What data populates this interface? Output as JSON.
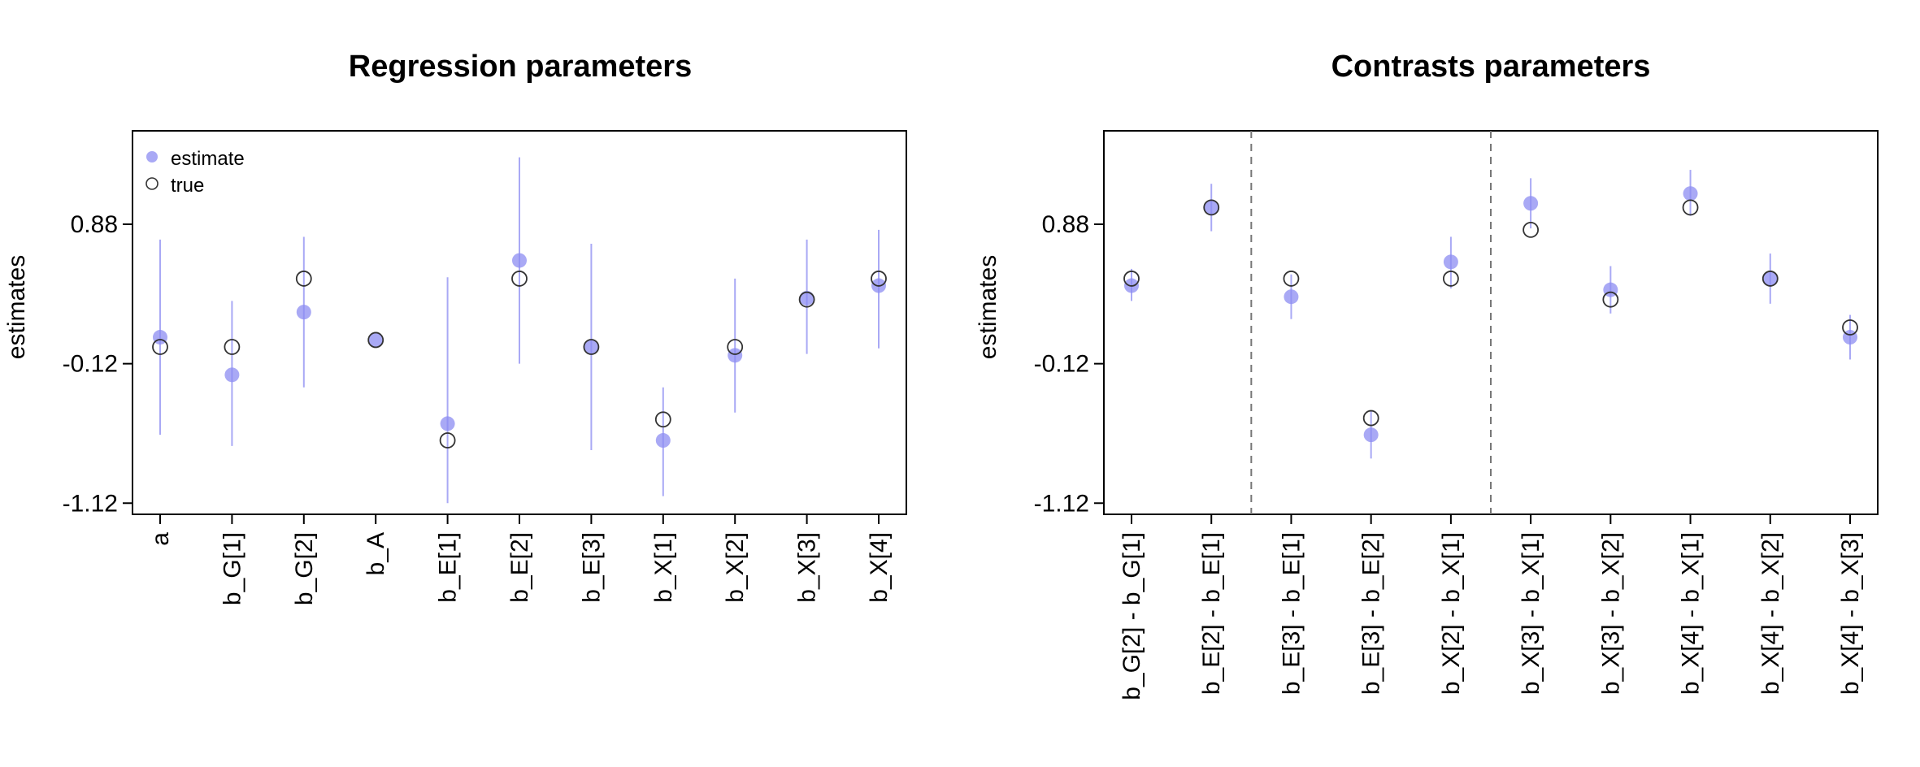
{
  "chart_data": [
    {
      "type": "scatter",
      "title": "Regression parameters",
      "xlabel": "",
      "ylabel": "estimates",
      "ylim": [
        -1.2,
        1.55
      ],
      "yticks": [
        0.88,
        -0.12,
        -1.12
      ],
      "ytick_labels": [
        "0.88",
        "-0.12",
        "-1.12"
      ],
      "categories": [
        "a",
        "b_G[1]",
        "b_G[2]",
        "b_A",
        "b_E[1]",
        "b_E[2]",
        "b_E[3]",
        "b_X[1]",
        "b_X[2]",
        "b_X[3]",
        "b_X[4]"
      ],
      "legend": {
        "placement": "top-left",
        "entries": [
          "estimate",
          "true"
        ]
      },
      "series": [
        {
          "name": "estimate",
          "values": [
            0.07,
            -0.2,
            0.25,
            0.05,
            -0.55,
            0.62,
            0.0,
            -0.67,
            -0.06,
            0.35,
            0.44
          ],
          "color": "#8c8cf2",
          "lower": [
            -0.63,
            -0.71,
            -0.29,
            0.05,
            -1.12,
            -0.12,
            -0.74,
            -1.07,
            -0.47,
            -0.05,
            -0.01
          ],
          "upper": [
            0.77,
            0.33,
            0.79,
            0.05,
            0.5,
            1.36,
            0.74,
            -0.29,
            0.49,
            0.77,
            0.84
          ]
        },
        {
          "name": "true",
          "values": [
            0.0,
            0.0,
            0.49,
            0.05,
            -0.67,
            0.49,
            0.0,
            -0.52,
            0.0,
            0.34,
            0.49
          ],
          "color": "#333333"
        }
      ],
      "grid": false,
      "vlines": []
    },
    {
      "type": "scatter",
      "title": "Contrasts parameters",
      "xlabel": "",
      "ylabel": "estimates",
      "ylim": [
        -1.2,
        1.55
      ],
      "yticks": [
        0.88,
        -0.12,
        -1.12
      ],
      "ytick_labels": [
        "0.88",
        "-0.12",
        "-1.12"
      ],
      "categories": [
        "b_G[2] - b_G[1]",
        "b_E[2] - b_E[1]",
        "b_E[3] - b_E[1]",
        "b_E[3] - b_E[2]",
        "b_X[2] - b_X[1]",
        "b_X[3] - b_X[1]",
        "b_X[3] - b_X[2]",
        "b_X[4] - b_X[1]",
        "b_X[4] - b_X[2]",
        "b_X[4] - b_X[3]"
      ],
      "series": [
        {
          "name": "estimate",
          "values": [
            0.44,
            1.0,
            0.36,
            -0.63,
            0.61,
            1.03,
            0.41,
            1.1,
            0.49,
            0.07
          ],
          "color": "#8c8cf2",
          "lower": [
            0.33,
            0.83,
            0.2,
            -0.8,
            0.42,
            0.85,
            0.24,
            0.94,
            0.31,
            -0.09
          ],
          "upper": [
            0.56,
            1.17,
            0.52,
            -0.46,
            0.79,
            1.21,
            0.58,
            1.27,
            0.67,
            0.23
          ]
        },
        {
          "name": "true",
          "values": [
            0.49,
            1.0,
            0.49,
            -0.51,
            0.49,
            0.84,
            0.34,
            1.0,
            0.49,
            0.14
          ],
          "color": "#333333"
        }
      ],
      "grid": false,
      "vlines": [
        1.5,
        4.5
      ]
    }
  ]
}
